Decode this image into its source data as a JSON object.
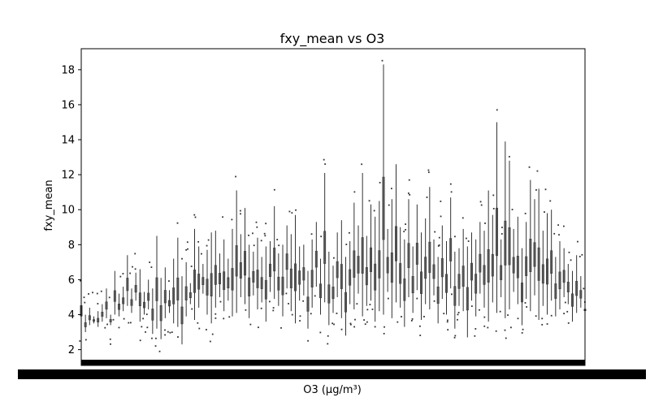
{
  "chart_data": {
    "type": "box",
    "title": "fxy_mean vs O3",
    "xlabel": "O3 (µg/m³)",
    "ylabel": "fxy_mean",
    "ylim": [
      1.1,
      19.2
    ],
    "yticks": [
      2,
      4,
      6,
      8,
      10,
      12,
      14,
      16,
      18
    ],
    "x_tick_labels_overlapping": true,
    "grid": false,
    "legend": "none",
    "color": "#333333",
    "n_categories_approx": 175,
    "category_whisker_ranges": [
      [
        3.2,
        5.6
      ],
      [
        3.0,
        4.0
      ],
      [
        3.4,
        4.4
      ],
      [
        3.5,
        3.9
      ],
      [
        3.3,
        4.2
      ],
      [
        3.6,
        4.6
      ],
      [
        3.8,
        5.5
      ],
      [
        3.4,
        4.0
      ],
      [
        4.0,
        6.5
      ],
      [
        3.9,
        5.2
      ],
      [
        4.2,
        5.6
      ],
      [
        4.5,
        7.4
      ],
      [
        4.1,
        5.5
      ],
      [
        4.8,
        6.4
      ],
      [
        3.6,
        6.6
      ],
      [
        4.0,
        5.3
      ],
      [
        4.3,
        6.0
      ],
      [
        2.9,
        5.5
      ],
      [
        3.2,
        8.5
      ],
      [
        2.6,
        6.1
      ],
      [
        3.8,
        6.7
      ],
      [
        4.1,
        5.4
      ],
      [
        3.5,
        7.2
      ],
      [
        3.3,
        8.4
      ],
      [
        2.3,
        6.2
      ],
      [
        3.9,
        7.0
      ],
      [
        4.6,
        5.8
      ],
      [
        3.7,
        8.9
      ],
      [
        4.4,
        7.9
      ],
      [
        5.2,
        6.9
      ],
      [
        4.0,
        7.7
      ],
      [
        3.5,
        8.7
      ],
      [
        4.4,
        8.8
      ],
      [
        5.0,
        7.5
      ],
      [
        4.2,
        8.3
      ],
      [
        4.8,
        7.2
      ],
      [
        3.9,
        8.9
      ],
      [
        4.1,
        11.1
      ],
      [
        5.0,
        8.6
      ],
      [
        4.6,
        10.1
      ],
      [
        3.8,
        8.0
      ],
      [
        5.1,
        7.6
      ],
      [
        4.3,
        8.4
      ],
      [
        4.7,
        7.3
      ],
      [
        3.6,
        7.9
      ],
      [
        5.3,
        8.2
      ],
      [
        4.9,
        10.2
      ],
      [
        4.5,
        7.5
      ],
      [
        3.9,
        8.0
      ],
      [
        5.5,
        9.1
      ],
      [
        4.2,
        8.6
      ],
      [
        3.5,
        9.7
      ],
      [
        4.8,
        7.9
      ],
      [
        5.1,
        8.0
      ],
      [
        3.2,
        6.5
      ],
      [
        4.4,
        8.3
      ],
      [
        5.6,
        9.3
      ],
      [
        4.0,
        7.2
      ],
      [
        4.7,
        12.1
      ],
      [
        3.4,
        7.6
      ],
      [
        4.1,
        6.8
      ],
      [
        5.0,
        8.7
      ],
      [
        3.8,
        9.4
      ],
      [
        2.8,
        7.3
      ],
      [
        4.6,
        8.2
      ],
      [
        4.3,
        10.4
      ],
      [
        5.2,
        9.1
      ],
      [
        3.9,
        12.1
      ],
      [
        4.5,
        8.5
      ],
      [
        4.8,
        10.3
      ],
      [
        3.6,
        9.6
      ],
      [
        4.2,
        10.5
      ],
      [
        4.0,
        18.3
      ],
      [
        5.3,
        8.9
      ],
      [
        3.8,
        10.6
      ],
      [
        4.7,
        12.6
      ],
      [
        4.4,
        9.0
      ],
      [
        3.3,
        8.3
      ],
      [
        5.0,
        10.6
      ],
      [
        4.1,
        7.9
      ],
      [
        5.4,
        10.3
      ],
      [
        3.7,
        8.7
      ],
      [
        4.6,
        9.5
      ],
      [
        4.3,
        11.3
      ],
      [
        5.1,
        8.3
      ],
      [
        3.5,
        7.3
      ],
      [
        4.9,
        9.1
      ],
      [
        4.0,
        8.2
      ],
      [
        5.5,
        10.7
      ],
      [
        3.2,
        7.6
      ],
      [
        4.5,
        7.8
      ],
      [
        4.2,
        8.9
      ],
      [
        2.7,
        7.9
      ],
      [
        4.8,
        8.7
      ],
      [
        3.9,
        8.3
      ],
      [
        5.2,
        9.3
      ],
      [
        4.4,
        8.8
      ],
      [
        3.6,
        11.1
      ],
      [
        4.7,
        9.7
      ],
      [
        4.1,
        15.0
      ],
      [
        5.0,
        8.3
      ],
      [
        3.8,
        13.9
      ],
      [
        4.3,
        12.8
      ],
      [
        5.3,
        8.9
      ],
      [
        4.6,
        9.6
      ],
      [
        3.4,
        7.8
      ],
      [
        4.9,
        9.3
      ],
      [
        4.2,
        11.7
      ],
      [
        5.1,
        10.6
      ],
      [
        3.7,
        11.2
      ],
      [
        4.5,
        8.8
      ],
      [
        4.0,
        9.8
      ],
      [
        4.8,
        10.0
      ],
      [
        3.9,
        7.3
      ],
      [
        4.3,
        8.2
      ],
      [
        5.0,
        7.8
      ],
      [
        4.6,
        6.9
      ],
      [
        3.6,
        6.5
      ],
      [
        4.1,
        7.4
      ],
      [
        4.4,
        6.2
      ],
      [
        4.1,
        4.5
      ]
    ]
  }
}
